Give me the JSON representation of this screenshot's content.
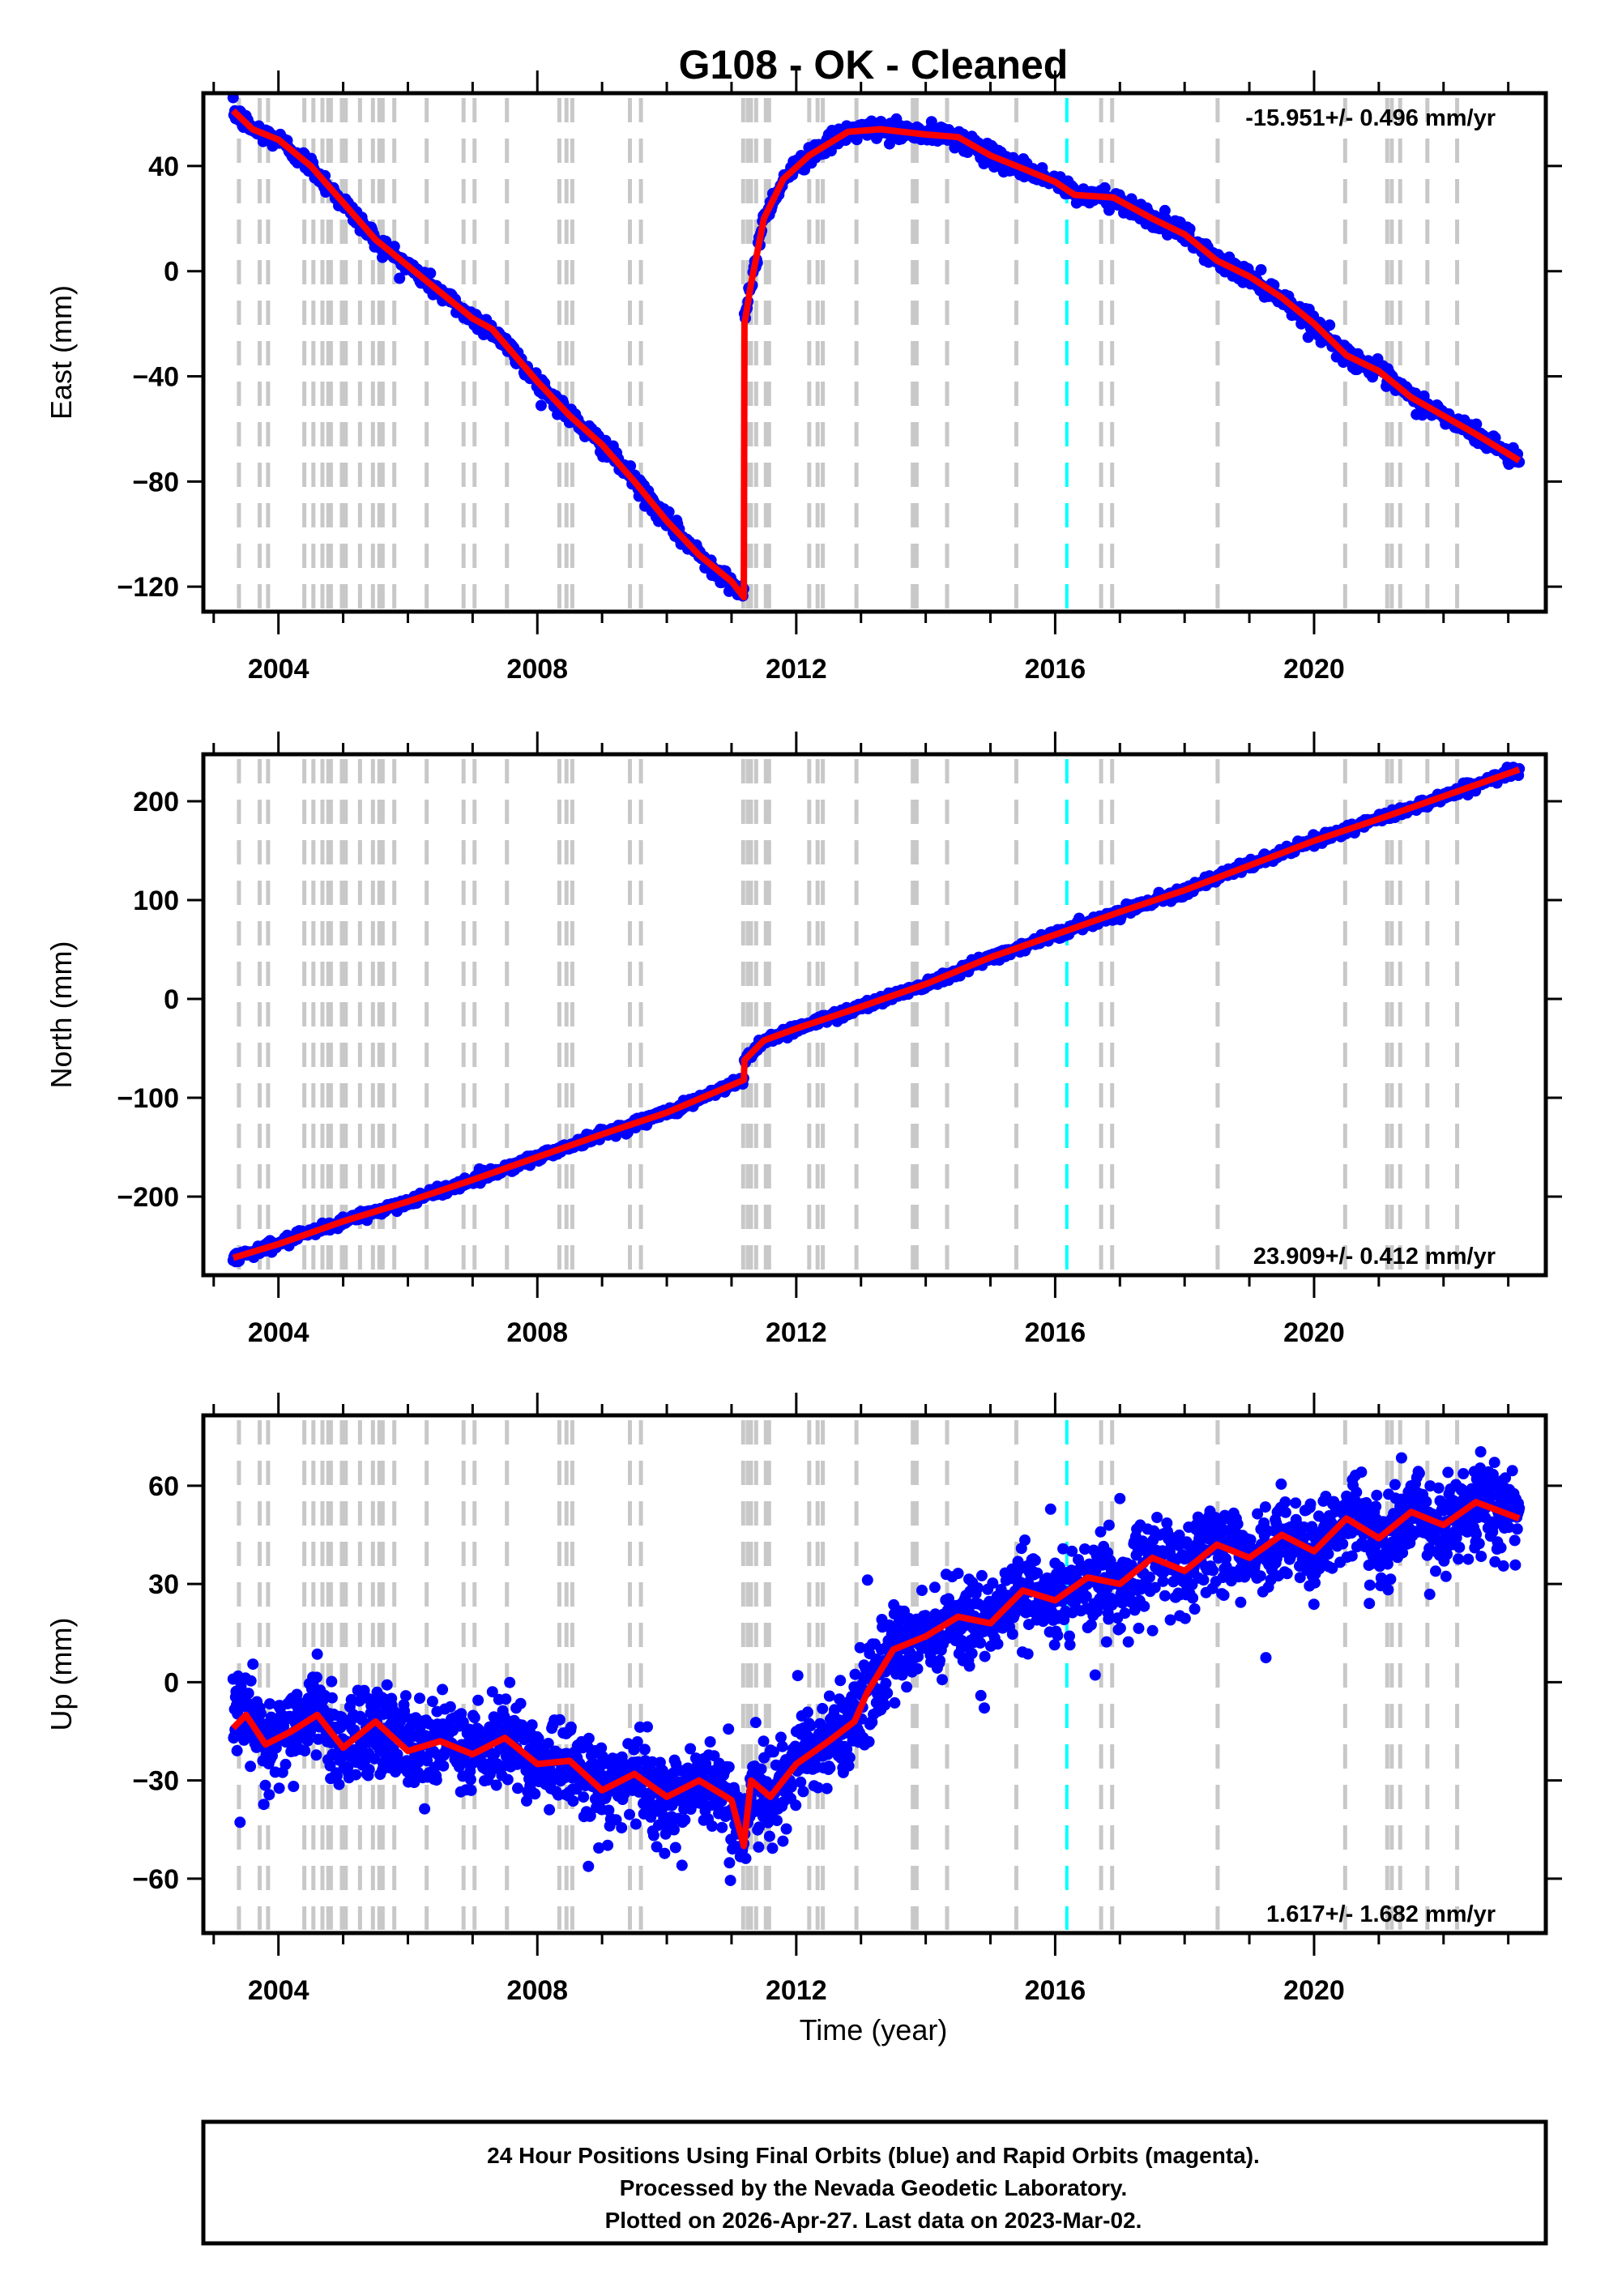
{
  "chart_data": {
    "type": "scatter",
    "title": "G108  - OK - Cleaned",
    "xlabel": "Time (year)",
    "xlim": [
      2002.84,
      2023.58
    ],
    "x_ticks_major": [
      2004,
      2008,
      2012,
      2016,
      2020
    ],
    "x_ticks_minor_step": 1,
    "colors": {
      "data_points": "#0000ff",
      "model_line": "#ff0000",
      "equipment_change": "#c8c8c8",
      "earthquake": "#00ffff",
      "frame": "#000000"
    },
    "equipment_change_years": [
      2003.39,
      2003.71,
      2003.84,
      2004.4,
      2004.54,
      2004.68,
      2004.77,
      2004.81,
      2004.98,
      2005.04,
      2005.26,
      2005.46,
      2005.56,
      2005.61,
      2005.79,
      2006.29,
      2006.86,
      2007.03,
      2007.53,
      2008.34,
      2008.45,
      2008.54,
      2009.43,
      2009.6,
      2011.18,
      2011.25,
      2011.3,
      2011.38,
      2011.53,
      2011.58,
      2012.2,
      2012.33,
      2012.41,
      2012.93,
      2013.8,
      2013.86,
      2014.33,
      2015.4,
      2016.71,
      2016.88,
      2018.51,
      2020.48,
      2021.13,
      2021.2,
      2021.33,
      2021.75,
      2022.21
    ],
    "earthquake_years": [
      2016.18
    ],
    "panels": [
      {
        "name": "east",
        "ylabel": "East (mm)",
        "ylim": [
          -129.5,
          67.7
        ],
        "y_ticks": [
          40,
          0,
          -40,
          -80,
          -120
        ],
        "y_tick_labels": [
          "40",
          "0",
          "−40",
          "−80",
          "−120"
        ],
        "rate_text": "-15.951+/- 0.496 mm/yr",
        "rate_position": "top-right",
        "scatter_sigma_mm": 1.8,
        "series": [
          {
            "name": "model",
            "x": [
              2003.3,
              2003.6,
              2004.0,
              2004.5,
              2005.0,
              2005.5,
              2006.0,
              2006.5,
              2007.0,
              2007.3,
              2008.0,
              2008.5,
              2009.0,
              2009.5,
              2010.0,
              2010.5,
              2011.0,
              2011.19,
              2011.2,
              2011.3,
              2011.5,
              2011.8,
              2012.2,
              2012.8,
              2013.3,
              2014.0,
              2014.5,
              2015.0,
              2015.5,
              2016.0,
              2016.3,
              2016.9,
              2017.5,
              2018.0,
              2018.5,
              2019.0,
              2019.5,
              2020.0,
              2020.5,
              2021.0,
              2021.5,
              2022.0,
              2022.5,
              2023.17
            ],
            "y": [
              61,
              54,
              50,
              40,
              26,
              12,
              2,
              -8,
              -18,
              -22,
              -42,
              -55,
              -66,
              -80,
              -95,
              -108,
              -118,
              -124,
              -20,
              -5,
              20,
              35,
              44,
              53,
              54,
              52,
              51,
              44,
              39,
              34,
              29,
              28,
              20,
              14,
              4,
              -2,
              -10,
              -20,
              -32,
              -38,
              -48,
              -55,
              -62,
              -72
            ]
          }
        ]
      },
      {
        "name": "north",
        "ylabel": "North (mm)",
        "ylim": [
          -279.5,
          247.5
        ],
        "y_ticks": [
          200,
          100,
          0,
          -100,
          -200
        ],
        "y_tick_labels": [
          "200",
          "100",
          "0",
          "−100",
          "−200"
        ],
        "rate_text": "23.909+/- 0.412 mm/yr",
        "rate_position": "bottom-right",
        "scatter_sigma_mm": 2.5,
        "series": [
          {
            "name": "model",
            "x": [
              2003.3,
              2004.0,
              2005.0,
              2006.0,
              2007.0,
              2008.0,
              2009.0,
              2010.0,
              2011.19,
              2011.2,
              2011.5,
              2012.0,
              2013.0,
              2014.0,
              2015.0,
              2016.0,
              2017.0,
              2018.0,
              2019.0,
              2020.0,
              2021.0,
              2022.0,
              2023.17
            ],
            "y": [
              -262,
              -248,
              -225,
              -205,
              -183,
              -160,
              -137,
              -115,
              -82,
              -62,
              -42,
              -30,
              -8,
              15,
              42,
              65,
              88,
              110,
              135,
              160,
              182,
              205,
              232
            ]
          }
        ]
      },
      {
        "name": "up",
        "ylabel": "Up (mm)",
        "ylim": [
          -76.6,
          81.5
        ],
        "y_ticks": [
          60,
          30,
          0,
          -30,
          -60
        ],
        "y_tick_labels": [
          "60",
          "30",
          "0",
          "−30",
          "−60"
        ],
        "rate_text": "1.617+/- 1.682 mm/yr",
        "rate_position": "bottom-right",
        "scatter_sigma_mm": 6.5,
        "series": [
          {
            "name": "model",
            "x": [
              2003.3,
              2003.5,
              2003.8,
              2004.2,
              2004.6,
              2005.0,
              2005.5,
              2006.0,
              2006.5,
              2007.0,
              2007.5,
              2008.0,
              2008.5,
              2009.0,
              2009.5,
              2010.0,
              2010.5,
              2011.0,
              2011.19,
              2011.3,
              2011.6,
              2012.0,
              2012.5,
              2012.9,
              2013.1,
              2013.5,
              2014.0,
              2014.5,
              2015.0,
              2015.5,
              2016.0,
              2016.5,
              2017.0,
              2017.5,
              2018.0,
              2018.5,
              2019.0,
              2019.5,
              2020.0,
              2020.5,
              2021.0,
              2021.5,
              2022.0,
              2022.5,
              2023.17
            ],
            "y": [
              -14,
              -10,
              -19,
              -15,
              -10,
              -20,
              -12,
              -21,
              -18,
              -22,
              -17,
              -25,
              -24,
              -33,
              -28,
              -35,
              -30,
              -36,
              -50,
              -30,
              -35,
              -25,
              -18,
              -12,
              -3,
              10,
              14,
              20,
              18,
              28,
              25,
              32,
              30,
              38,
              34,
              42,
              38,
              45,
              40,
              50,
              44,
              52,
              48,
              55,
              50
            ]
          }
        ]
      }
    ]
  },
  "caption": {
    "lines": [
      "24 Hour Positions Using Final Orbits (blue) and Rapid Orbits (magenta).",
      "Processed by the Nevada Geodetic Laboratory.",
      "Plotted on 2026-Apr-27. Last data on 2023-Mar-02."
    ]
  }
}
